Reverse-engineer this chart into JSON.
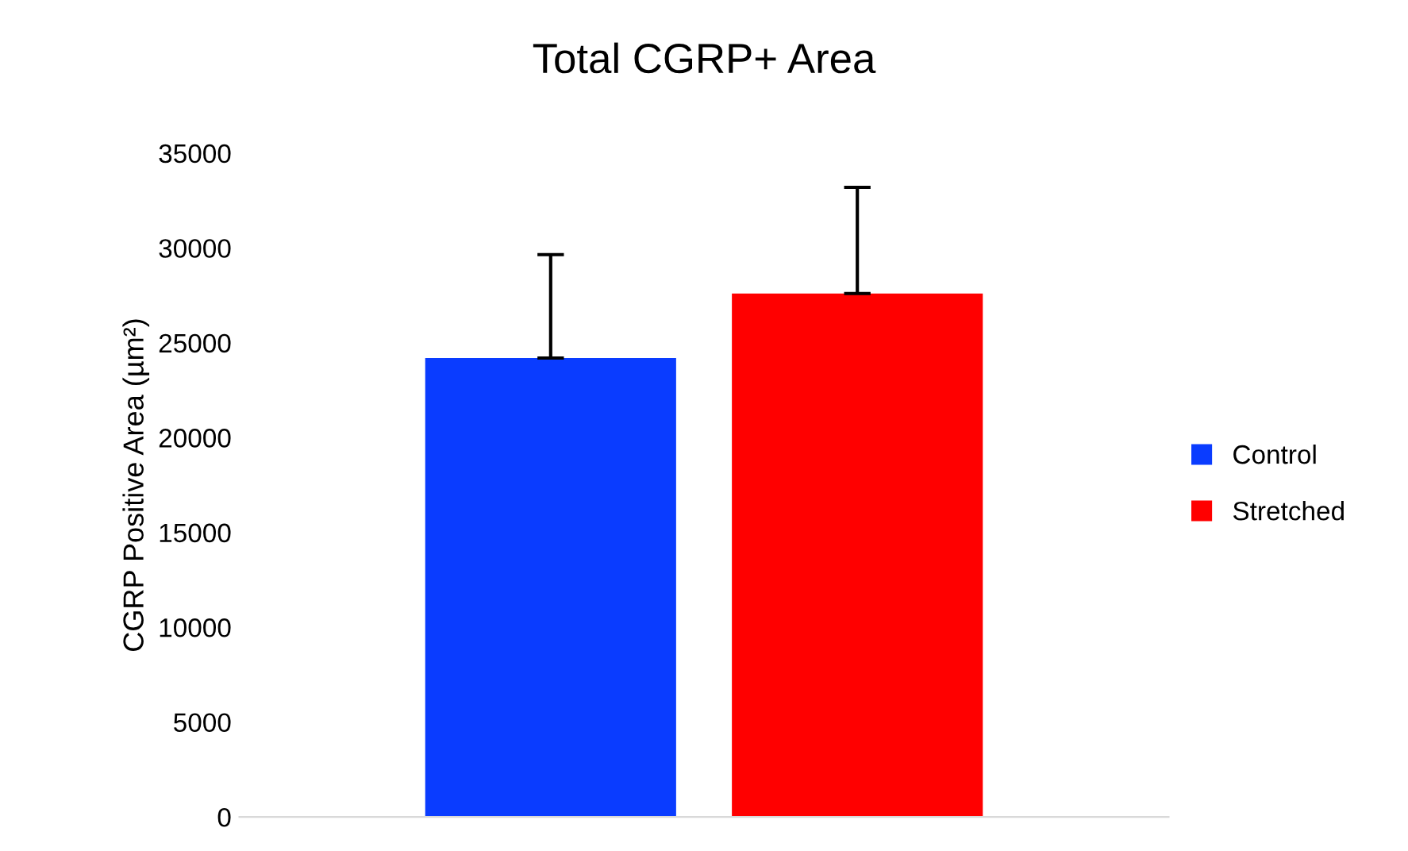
{
  "chart_data": {
    "type": "bar",
    "title": "Total CGRP+ Area",
    "ylabel": "CGRP Positive Area (µm²)",
    "categories": [
      null
    ],
    "series": [
      {
        "name": "Control",
        "color": "#0a3cff",
        "values": [
          24200
        ],
        "errors": [
          5450
        ]
      },
      {
        "name": "Stretched",
        "color": "#ff0000",
        "values": [
          27600
        ],
        "errors": [
          5600
        ]
      }
    ],
    "ylim": [
      0,
      35000
    ],
    "yticks": [
      0,
      5000,
      10000,
      15000,
      20000,
      25000,
      30000,
      35000
    ],
    "grid": false,
    "legend": "right"
  }
}
